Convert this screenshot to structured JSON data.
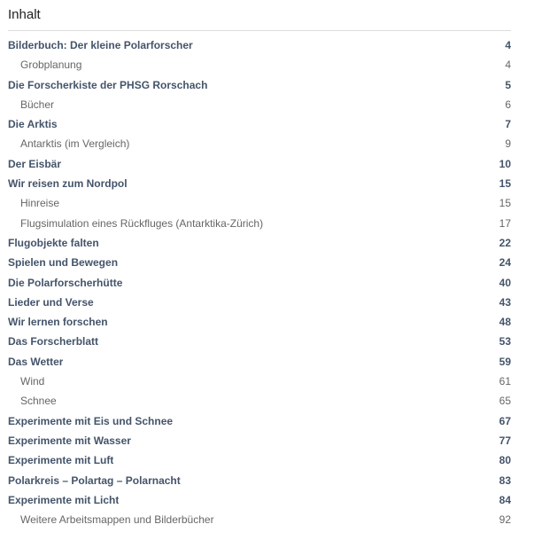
{
  "document": {
    "title": "Inhalt"
  },
  "colors": {
    "background": "#ffffff",
    "title_text": "#1f1f1f",
    "level1_text": "#44546A",
    "level2_text": "#666666",
    "divider": "#dcdcdc"
  },
  "toc": {
    "entries": [
      {
        "label": "Bilderbuch: Der kleine Polarforscher",
        "page": "4",
        "level": 1
      },
      {
        "label": "Grobplanung",
        "page": "4",
        "level": 2
      },
      {
        "label": "Die Forscherkiste der PHSG Rorschach",
        "page": "5",
        "level": 1
      },
      {
        "label": "Bücher",
        "page": "6",
        "level": 2
      },
      {
        "label": "Die Arktis",
        "page": "7",
        "level": 1
      },
      {
        "label": "Antarktis (im Vergleich)",
        "page": "9",
        "level": 2
      },
      {
        "label": "Der Eisbär",
        "page": "10",
        "level": 1
      },
      {
        "label": "Wir reisen zum Nordpol",
        "page": "15",
        "level": 1
      },
      {
        "label": "Hinreise",
        "page": "15",
        "level": 2
      },
      {
        "label": "Flugsimulation eines Rückfluges (Antarktika-Zürich)",
        "page": "17",
        "level": 2
      },
      {
        "label": "Flugobjekte falten",
        "page": "22",
        "level": 1
      },
      {
        "label": "Spielen und Bewegen",
        "page": "24",
        "level": 1
      },
      {
        "label": "Die Polarforscherhütte",
        "page": "40",
        "level": 1
      },
      {
        "label": "Lieder und Verse",
        "page": "43",
        "level": 1
      },
      {
        "label": "Wir lernen forschen",
        "page": "48",
        "level": 1
      },
      {
        "label": "Das Forscherblatt",
        "page": "53",
        "level": 1
      },
      {
        "label": "Das Wetter",
        "page": "59",
        "level": 1
      },
      {
        "label": "Wind",
        "page": "61",
        "level": 2
      },
      {
        "label": "Schnee",
        "page": "65",
        "level": 2
      },
      {
        "label": "Experimente mit Eis und Schnee",
        "page": "67",
        "level": 1
      },
      {
        "label": "Experimente mit Wasser",
        "page": "77",
        "level": 1
      },
      {
        "label": "Experimente mit Luft",
        "page": "80",
        "level": 1
      },
      {
        "label": "Polarkreis – Polartag – Polarnacht",
        "page": "83",
        "level": 1
      },
      {
        "label": "Experimente mit Licht",
        "page": "84",
        "level": 1
      },
      {
        "label": "Weitere Arbeitsmappen und Bilderbücher",
        "page": "92",
        "level": 2
      }
    ]
  }
}
